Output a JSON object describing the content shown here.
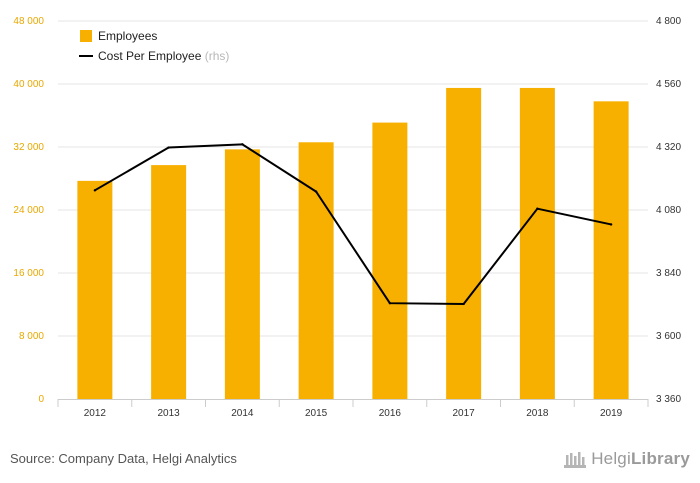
{
  "chart_data": {
    "type": "bar+line",
    "categories": [
      "2012",
      "2013",
      "2014",
      "2015",
      "2016",
      "2017",
      "2018",
      "2019"
    ],
    "series": [
      {
        "name": "Employees",
        "type": "bar",
        "axis": "left",
        "values": [
          27700,
          29700,
          31700,
          32600,
          35100,
          39500,
          39500,
          37800
        ]
      },
      {
        "name": "Cost Per Employee",
        "name_suffix": "(rhs)",
        "type": "line",
        "axis": "right",
        "values": [
          4155,
          4318,
          4330,
          4150,
          3725,
          3722,
          4085,
          4025
        ]
      }
    ],
    "y_left": {
      "min": 0,
      "max": 48000,
      "ticks": [
        "0",
        "8 000",
        "16 000",
        "24 000",
        "32 000",
        "40 000",
        "48 000"
      ]
    },
    "y_right": {
      "min": 3360,
      "max": 4800,
      "ticks": [
        "3 360",
        "3 600",
        "3 840",
        "4 080",
        "4 320",
        "4 560",
        "4 800"
      ]
    },
    "legend_position": "top-left",
    "colors": {
      "bar": "#f7b000",
      "line": "#000000",
      "left_axis_text": "#e8a800",
      "right_axis_text": "#333333",
      "grid": "#e6e6e6"
    }
  },
  "footer": {
    "source": "Source: Company Data, Helgi Analytics",
    "logo_regular": "Helgi",
    "logo_bold": "Library"
  }
}
